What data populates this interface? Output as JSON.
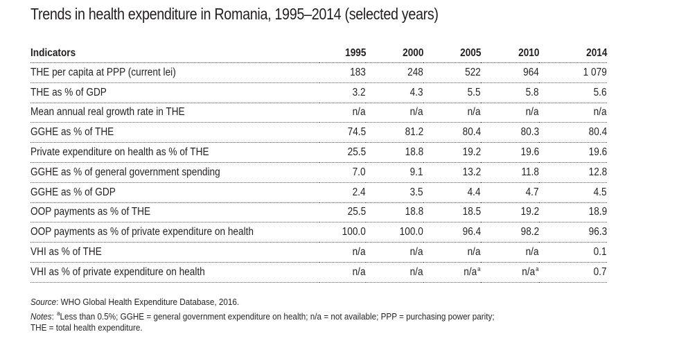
{
  "title": "Trends in health expenditure in Romania, 1995–2014 (selected years)",
  "table": {
    "header": [
      "Indicators",
      "1995",
      "2000",
      "2005",
      "2010",
      "2014"
    ],
    "rows": [
      {
        "indicator": "THE per capita at PPP (current lei)",
        "values": [
          "183",
          "248",
          "522",
          "964",
          "1 079"
        ]
      },
      {
        "indicator": "THE as % of GDP",
        "values": [
          "3.2",
          "4.3",
          "5.5",
          "5.8",
          "5.6"
        ]
      },
      {
        "indicator": "Mean annual real growth rate in THE",
        "values": [
          "n/a",
          "n/a",
          "n/a",
          "n/a",
          "n/a"
        ]
      },
      {
        "indicator": "GGHE as % of THE",
        "values": [
          "74.5",
          "81.2",
          "80.4",
          "80.3",
          "80.4"
        ]
      },
      {
        "indicator": "Private expenditure on health as % of THE",
        "values": [
          "25.5",
          "18.8",
          "19.2",
          "19.6",
          "19.6"
        ]
      },
      {
        "indicator": "GGHE as % of general government spending",
        "values": [
          "7.0",
          "9.1",
          "13.2",
          "11.8",
          "12.8"
        ]
      },
      {
        "indicator": "GGHE as % of GDP",
        "values": [
          "2.4",
          "3.5",
          "4.4",
          "4.7",
          "4.5"
        ]
      },
      {
        "indicator": "OOP payments as % of THE",
        "values": [
          "25.5",
          "18.8",
          "18.5",
          "19.2",
          "18.9"
        ]
      },
      {
        "indicator": "OOP payments as % of private expenditure on health",
        "values": [
          "100.0",
          "100.0",
          "96.4",
          "98.2",
          "96.3"
        ]
      },
      {
        "indicator": "VHI as % of THE",
        "values": [
          "n/a",
          "n/a",
          "n/a",
          "n/a",
          "0.1"
        ]
      },
      {
        "indicator": "VHI as % of private expenditure on health",
        "values": [
          "n/a",
          "n/a",
          "n/a",
          "n/a",
          "0.7"
        ],
        "superscripts": [
          "",
          "",
          "a",
          "a",
          ""
        ]
      }
    ]
  },
  "source": {
    "label": "Source",
    "text": ": WHO Global Health Expenditure Database, 2016."
  },
  "notes": {
    "label": "Notes",
    "sup": "a",
    "line1": "Less than 0.5%; GGHE = general government expenditure on health; n/a = not available; PPP = purchasing power parity;",
    "line2": "THE = total health expenditure."
  }
}
